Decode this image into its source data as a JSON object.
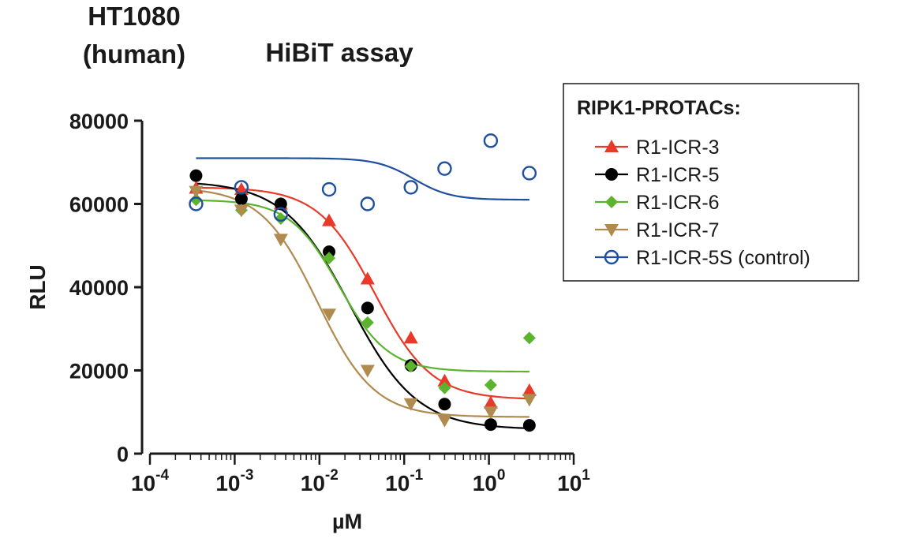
{
  "page": {
    "line1": "HT1080",
    "line2": "(human)",
    "assay": "HiBiT assay"
  },
  "chart_data": {
    "type": "scatter",
    "xscale": "log",
    "xlabel": "µM",
    "ylabel": "RLU",
    "xlim": [
      0.0001,
      10
    ],
    "ylim": [
      0,
      80000
    ],
    "yticks": [
      0,
      20000,
      40000,
      60000,
      80000
    ],
    "ytick_labels": [
      "0",
      "20000",
      "40000",
      "60000",
      "80000"
    ],
    "xticks_major": [
      {
        "base": "10",
        "exp": "-4",
        "value": 0.0001
      },
      {
        "base": "10",
        "exp": "-3",
        "value": 0.001
      },
      {
        "base": "10",
        "exp": "-2",
        "value": 0.01
      },
      {
        "base": "10",
        "exp": "-1",
        "value": 0.1
      },
      {
        "base": "10",
        "exp": "0",
        "value": 1
      },
      {
        "base": "10",
        "exp": "1",
        "value": 10
      }
    ],
    "legend": {
      "title": "RIPK1-PROTACs:",
      "position": "top-right"
    },
    "x": [
      0.00035,
      0.0012,
      0.0035,
      0.013,
      0.037,
      0.12,
      0.3,
      1.05,
      3.0
    ],
    "series": [
      {
        "name": "R1-ICR-3",
        "color": "#e8392a",
        "marker": "triangle-up",
        "values": [
          63800,
          63500,
          60000,
          56000,
          42000,
          27800,
          17500,
          12200,
          15200
        ],
        "fit": {
          "top": 64000,
          "bottom": 13000,
          "ec50": 0.045,
          "hill": 1.3
        }
      },
      {
        "name": "R1-ICR-5",
        "color": "#000000",
        "marker": "circle-filled",
        "values": [
          66800,
          61200,
          60000,
          48500,
          35000,
          21200,
          11900,
          7000,
          6800
        ],
        "fit": {
          "top": 65500,
          "bottom": 5800,
          "ec50": 0.023,
          "hill": 1.1
        }
      },
      {
        "name": "R1-ICR-6",
        "color": "#5cb32e",
        "marker": "diamond",
        "values": [
          61000,
          58500,
          56500,
          47000,
          31500,
          21000,
          15800,
          16500,
          27800
        ],
        "fit": {
          "top": 61000,
          "bottom": 19700,
          "ec50": 0.017,
          "hill": 1.5
        }
      },
      {
        "name": "R1-ICR-7",
        "color": "#b08a4e",
        "marker": "triangle-down",
        "values": [
          63000,
          58500,
          51500,
          33500,
          20000,
          12000,
          8000,
          10000,
          13000
        ],
        "fit": {
          "top": 64000,
          "bottom": 8800,
          "ec50": 0.0095,
          "hill": 1.3
        }
      },
      {
        "name": "R1-ICR-5S (control)",
        "color": "#1f4fa0",
        "marker": "circle-open",
        "values": [
          60000,
          64000,
          57500,
          63500,
          60000,
          64000,
          68500,
          75200,
          67400
        ],
        "fit": {
          "top": 71000,
          "bottom": 61000,
          "ec50": 0.13,
          "hill": 2.0
        }
      }
    ]
  }
}
